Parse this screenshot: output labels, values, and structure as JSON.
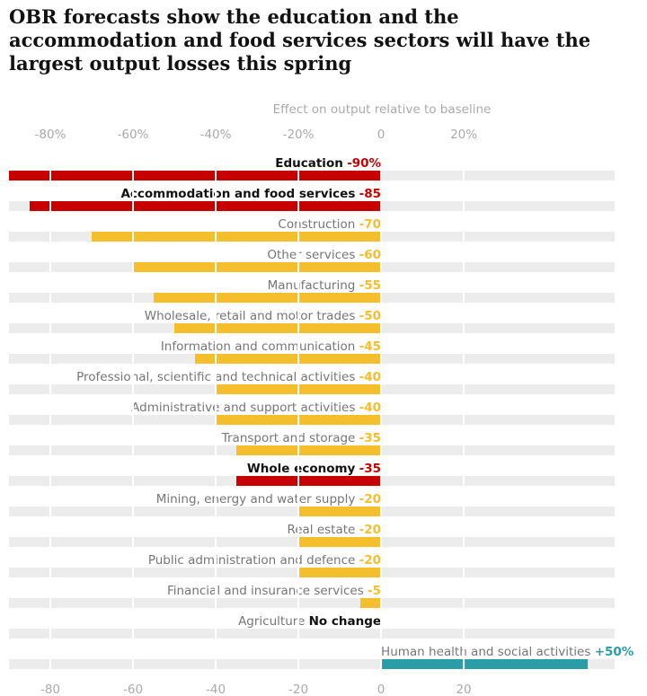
{
  "chart_data": {
    "type": "bar",
    "orientation": "horizontal",
    "title": "OBR forecasts show the education and the accommodation and food services sectors will have the largest output losses this spring",
    "xlabel": "Effect on output relative to baseline",
    "categories": [
      "Education",
      "Accommodation and food services",
      "Construction",
      "Other services",
      "Manufacturing",
      "Wholesale, retail and motor trades",
      "Information and communication",
      "Professional, scientific and technical activities",
      "Administrative and support activities",
      "Transport and storage",
      "Whole economy",
      "Mining, energy and water supply",
      "Real estate",
      "Public administration and defence",
      "Financial and insurance services",
      "Agriculture",
      "Human health and social activities"
    ],
    "values": [
      -90,
      -85,
      -70,
      -60,
      -55,
      -50,
      -45,
      -40,
      -40,
      -35,
      -35,
      -20,
      -20,
      -20,
      -5,
      0,
      50
    ],
    "value_labels": [
      "-90%",
      "-85",
      "-70",
      "-60",
      "-55",
      "-50",
      "-45",
      "-40",
      "-40",
      "-35",
      "-35",
      "-20",
      "-20",
      "-20",
      "-5",
      "No change",
      "+50%"
    ],
    "colors": [
      "#c70000",
      "#c70000",
      "#f5be2c",
      "#f5be2c",
      "#f5be2c",
      "#f5be2c",
      "#f5be2c",
      "#f5be2c",
      "#f5be2c",
      "#f5be2c",
      "#c70000",
      "#f5be2c",
      "#f5be2c",
      "#f5be2c",
      "#f5be2c",
      "#121212",
      "#2a9da6"
    ],
    "xlim": [
      -90,
      56.5
    ],
    "xticks_top": [
      {
        "value": -80,
        "label": "-80%"
      },
      {
        "value": -60,
        "label": "-60%"
      },
      {
        "value": -40,
        "label": "-40%"
      },
      {
        "value": -20,
        "label": "-20%"
      },
      0,
      {
        "value": 20,
        "label": "20%"
      }
    ],
    "xticks": [
      -80,
      -60,
      -40,
      -20,
      0,
      20
    ]
  }
}
